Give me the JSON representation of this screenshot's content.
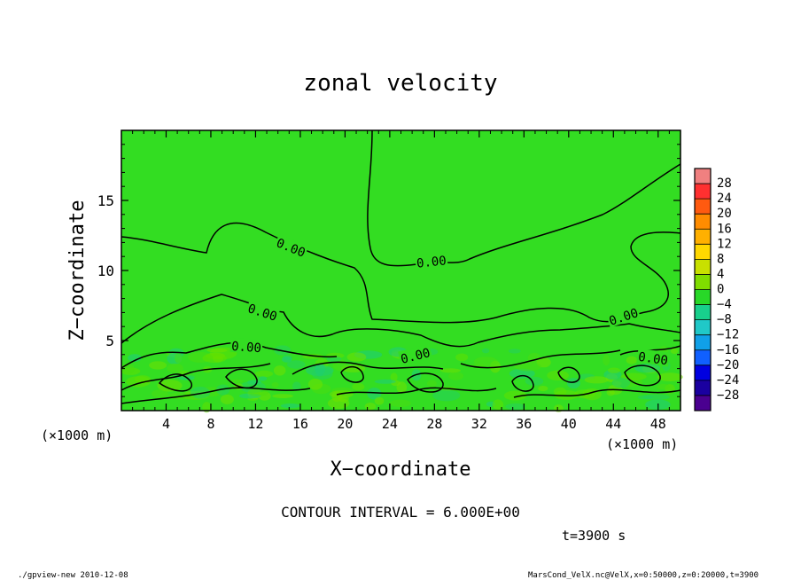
{
  "chart_data": {
    "type": "contour",
    "title": "zonal velocity",
    "xlabel": "X−coordinate",
    "ylabel": "Z−coordinate",
    "x_unit_left": "(×1000 m)",
    "x_unit_right": "(×1000 m)",
    "xlim": [
      0,
      50
    ],
    "ylim": [
      0,
      20
    ],
    "x_ticks": [
      "4",
      "8",
      "12",
      "16",
      "20",
      "24",
      "28",
      "32",
      "36",
      "40",
      "44",
      "48"
    ],
    "x_tick_values": [
      4,
      8,
      12,
      16,
      20,
      24,
      28,
      32,
      36,
      40,
      44,
      48
    ],
    "y_ticks": [
      "5",
      "10",
      "15"
    ],
    "y_tick_values": [
      5,
      10,
      15
    ],
    "contour_level_label": "0.00",
    "contour_label_count": 7,
    "colorbar": {
      "labels": [
        "28",
        "24",
        "20",
        "16",
        "12",
        "8",
        "4",
        "0",
        "−4",
        "−8",
        "−12",
        "−16",
        "−20",
        "−24",
        "−28"
      ],
      "colors": [
        "#f08080",
        "#ff3030",
        "#ff5a10",
        "#ff8c00",
        "#ffb000",
        "#ffd800",
        "#c8e000",
        "#80dd00",
        "#28d828",
        "#18d08c",
        "#20c8c8",
        "#10a0e8",
        "#1060ff",
        "#0000e0",
        "#1a00a0",
        "#4a0090"
      ]
    },
    "field_color_main": "#33dd22",
    "contour_interval": "CONTOUR INTERVAL = 6.000E+00",
    "time": "t=3900 s"
  },
  "footer": {
    "left": "./gpview-new   2010-12-08",
    "right": "MarsCond_VelX.nc@VelX,x=0:50000,z=0:20000,t=3900"
  }
}
